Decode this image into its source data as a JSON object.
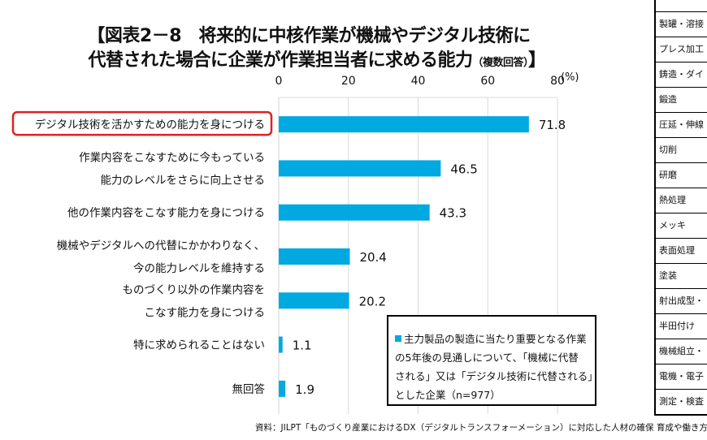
{
  "title": {
    "line1": "【図表2－8　将来的に中核作業が機械やデジタル技術に",
    "line2": "代替された場合に企業が作業担当者に求める能力",
    "line2_note": "（複数回答）",
    "line2_end": "】"
  },
  "chart_data": {
    "type": "bar",
    "orientation": "horizontal",
    "categories": [
      [
        "デジタル技術を活かすための能力を身につける"
      ],
      [
        "作業内容をこなすために今もっている",
        "能力のレベルをさらに向上させる"
      ],
      [
        "他の作業内容をこなす能力を身につける"
      ],
      [
        "機械やデジタルへの代替にかかわりなく、",
        "今の能力レベルを維持する"
      ],
      [
        "ものづくり以外の作業内容を",
        "こなす能力を身につける"
      ],
      [
        "特に求められることはない"
      ],
      [
        "無回答"
      ]
    ],
    "values": [
      71.8,
      46.5,
      43.3,
      20.4,
      20.2,
      1.1,
      1.9
    ],
    "value_labels": [
      "71.8",
      "46.5",
      "43.3",
      "20.4",
      "20.2",
      "1.1",
      "1.9"
    ],
    "xlim": [
      0,
      80
    ],
    "xticks": [
      "0",
      "20",
      "40",
      "60",
      "80"
    ],
    "xunit": "(%)",
    "grid": true,
    "bar_color": "#00a9e0",
    "highlight_color": "#e02020",
    "highlighted_category_index": 0,
    "legend": {
      "lines": [
        "主力製品の製造に当たり重要となる作業",
        "の5年後の見通しについて、「機械に代替",
        "される」又は「デジタル技術に代替される」",
        "とした企業（n=977）"
      ],
      "placement": "bottom-right"
    }
  },
  "source": "資料：JILPT「ものづくり産業におけるDX（デジタルトランスフォーメーション）に対応した人材の確保 育成や働き方",
  "side_table": [
    "製罐・溶接",
    "プレス加工",
    "鋳造・ダイ",
    "鍛造",
    "圧延・伸線",
    "切削",
    "研磨",
    "熱処理",
    "メッキ",
    "表面処理",
    "塗装",
    "射出成型・",
    "半田付け",
    "機械組立・",
    "電機・電子",
    "測定・検査"
  ]
}
